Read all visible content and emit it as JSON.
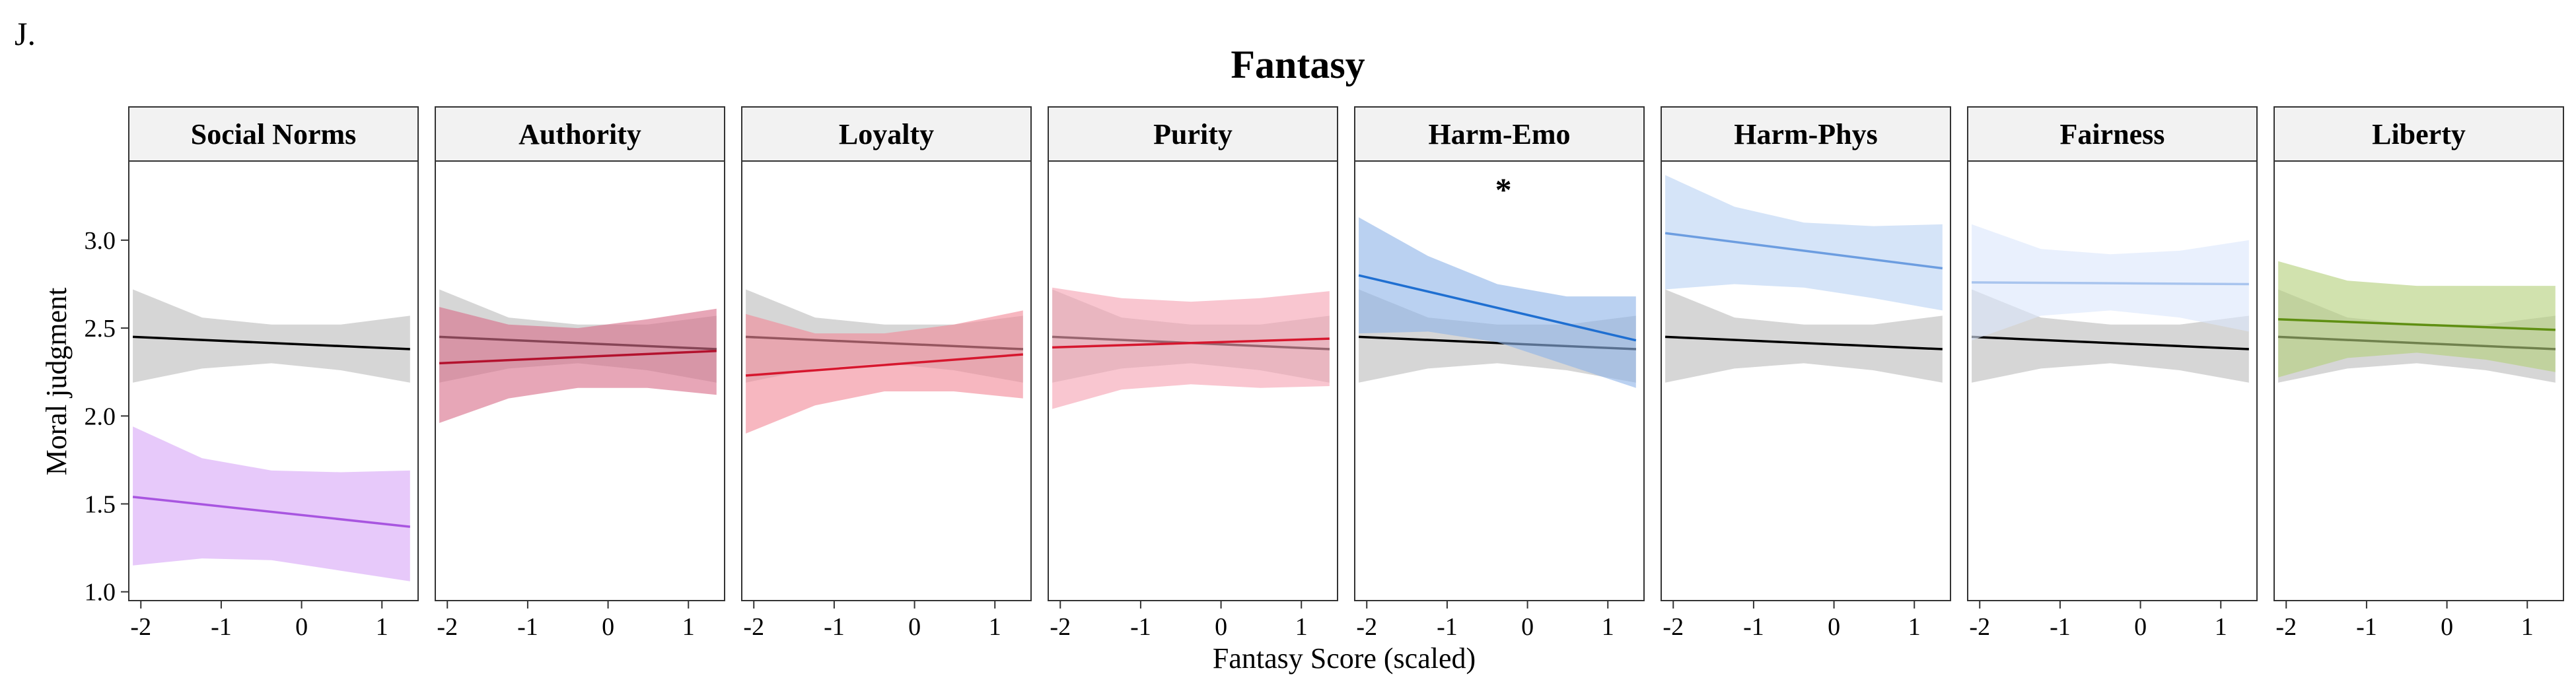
{
  "panel_letter": "J.",
  "chart_data": {
    "type": "line",
    "title": "Fantasy",
    "xlabel": "Fantasy Score (scaled)",
    "ylabel": "Moral judgment",
    "xlim": [
      -2.15,
      1.45
    ],
    "ylim": [
      0.95,
      3.45
    ],
    "x_ticks": [
      -2,
      -1,
      0,
      1
    ],
    "x_tick_labels": [
      "-2",
      "-1",
      "0",
      "1"
    ],
    "y_ticks": [
      1.0,
      1.5,
      2.0,
      2.5,
      3.0
    ],
    "y_tick_labels": [
      "1.0",
      "1.5",
      "2.0",
      "2.5",
      "3.0"
    ],
    "grid": false,
    "x_range": [
      -2.1,
      1.35
    ],
    "reference_color": "#000000",
    "reference_band_color": "#bdbdbd",
    "reference_line": {
      "y_start": 2.45,
      "y_end": 2.38
    },
    "reference_band": {
      "lower": [
        2.19,
        2.27,
        2.3,
        2.26,
        2.19
      ],
      "upper": [
        2.72,
        2.56,
        2.52,
        2.52,
        2.57
      ]
    },
    "panels": [
      {
        "label": "Social Norms",
        "color": "#a855e0",
        "band_color": "#d9a8f7",
        "line": {
          "y_start": 1.54,
          "y_end": 1.37
        },
        "band": {
          "lower": [
            1.15,
            1.19,
            1.18,
            1.12,
            1.06
          ],
          "upper": [
            1.94,
            1.76,
            1.69,
            1.68,
            1.69
          ]
        },
        "annotation": ""
      },
      {
        "label": "Authority",
        "color": "#b3122e",
        "band_color": "#d9708a",
        "line": {
          "y_start": 2.3,
          "y_end": 2.37
        },
        "band": {
          "lower": [
            1.96,
            2.1,
            2.16,
            2.16,
            2.12
          ],
          "upper": [
            2.62,
            2.52,
            2.5,
            2.55,
            2.61
          ]
        },
        "annotation": ""
      },
      {
        "label": "Loyalty",
        "color": "#d6172e",
        "band_color": "#f28b99",
        "line": {
          "y_start": 2.23,
          "y_end": 2.35
        },
        "band": {
          "lower": [
            1.9,
            2.06,
            2.14,
            2.14,
            2.1
          ],
          "upper": [
            2.58,
            2.47,
            2.47,
            2.52,
            2.6
          ]
        },
        "annotation": ""
      },
      {
        "label": "Purity",
        "color": "#d6172e",
        "band_color": "#f5a3b3",
        "line": {
          "y_start": 2.39,
          "y_end": 2.44
        },
        "band": {
          "lower": [
            2.04,
            2.15,
            2.18,
            2.16,
            2.17
          ],
          "upper": [
            2.73,
            2.67,
            2.65,
            2.67,
            2.71
          ]
        },
        "annotation": ""
      },
      {
        "label": "Harm-Emo",
        "color": "#1f6fd1",
        "band_color": "#8fb5e8",
        "line": {
          "y_start": 2.8,
          "y_end": 2.43
        },
        "band": {
          "lower": [
            2.47,
            2.48,
            2.42,
            2.29,
            2.16
          ],
          "upper": [
            3.13,
            2.91,
            2.75,
            2.68,
            2.68
          ]
        },
        "annotation": "*"
      },
      {
        "label": "Harm-Phys",
        "color": "#6c9de0",
        "band_color": "#bcd3f3",
        "line": {
          "y_start": 3.04,
          "y_end": 2.84
        },
        "band": {
          "lower": [
            2.72,
            2.75,
            2.73,
            2.67,
            2.6
          ],
          "upper": [
            3.37,
            3.19,
            3.1,
            3.08,
            3.09
          ]
        },
        "annotation": ""
      },
      {
        "label": "Fairness",
        "color": "#a8c4ee",
        "band_color": "#dce7fb",
        "line": {
          "y_start": 2.76,
          "y_end": 2.75
        },
        "band": {
          "lower": [
            2.43,
            2.57,
            2.6,
            2.56,
            2.48
          ],
          "upper": [
            3.09,
            2.95,
            2.92,
            2.94,
            3.0
          ]
        },
        "annotation": ""
      },
      {
        "label": "Liberty",
        "color": "#5f8f12",
        "band_color": "#b5d07c",
        "line": {
          "y_start": 2.55,
          "y_end": 2.49
        },
        "band": {
          "lower": [
            2.22,
            2.33,
            2.36,
            2.32,
            2.25
          ],
          "upper": [
            2.88,
            2.77,
            2.74,
            2.74,
            2.74
          ]
        },
        "annotation": ""
      }
    ]
  }
}
